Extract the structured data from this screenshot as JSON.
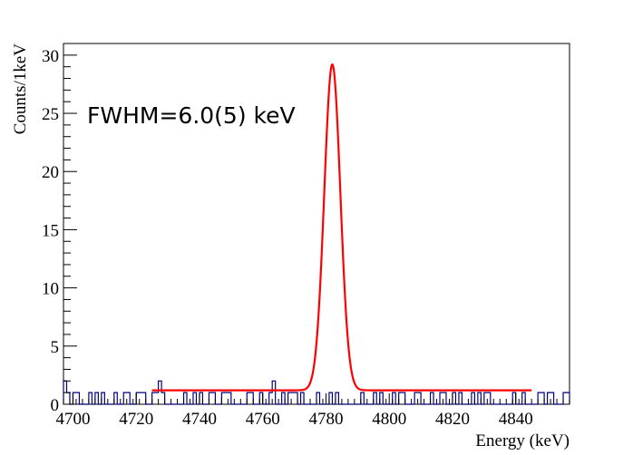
{
  "chart_data": {
    "type": "histogram",
    "xlabel": "Energy (keV)",
    "ylabel": "Counts/1keV",
    "xlim": [
      4697,
      4857
    ],
    "ylim": [
      0,
      31
    ],
    "x_ticks": [
      4700,
      4720,
      4740,
      4760,
      4780,
      4800,
      4820,
      4840
    ],
    "y_ticks": [
      0,
      5,
      10,
      15,
      20,
      25,
      30
    ],
    "x_tick_labels": [
      "4700",
      "4720",
      "4740",
      "4760",
      "4780",
      "4800",
      "4820",
      "4840"
    ],
    "y_tick_labels": [
      "0",
      "5",
      "10",
      "15",
      "20",
      "25",
      "30"
    ],
    "annotation": "FWHM=6.0(5) keV",
    "grid": false,
    "histogram": {
      "color": "#000080",
      "bin_width": 1,
      "bin_start": 4697,
      "counts": [
        2,
        1,
        0,
        1,
        1,
        0,
        0,
        0,
        1,
        0,
        1,
        0,
        1,
        0,
        0,
        0,
        1,
        0,
        0,
        1,
        1,
        0,
        0,
        1,
        1,
        1,
        0,
        0,
        1,
        1,
        2,
        1,
        0,
        0,
        0,
        0,
        0,
        0,
        1,
        0,
        0,
        1,
        0,
        1,
        0,
        0,
        1,
        1,
        0,
        0,
        1,
        1,
        1,
        0,
        0,
        0,
        0,
        0,
        1,
        1,
        0,
        0,
        1,
        0,
        0,
        1,
        2,
        0,
        0,
        1,
        0,
        1,
        1,
        1,
        0,
        1,
        0,
        0,
        0,
        0,
        1,
        0,
        0,
        0,
        1,
        0,
        1,
        0,
        0,
        0,
        0,
        0,
        0,
        0,
        1,
        0,
        0,
        0,
        1,
        0,
        1,
        0,
        0,
        0,
        1,
        0,
        1,
        1,
        0,
        0,
        0,
        1,
        1,
        0,
        0,
        0,
        1,
        0,
        0,
        1,
        1,
        0,
        0,
        1,
        0,
        1,
        0,
        0,
        0,
        1,
        0,
        1,
        0,
        1,
        1,
        0,
        0,
        0,
        0,
        0,
        0,
        0,
        1,
        0,
        0,
        1,
        0,
        0,
        0,
        0,
        1,
        1,
        0,
        1,
        1,
        0,
        0,
        0,
        1,
        1
      ]
    },
    "fit": {
      "color": "#ff0000",
      "range": [
        4725,
        4845
      ],
      "baseline": 1.2,
      "centroid": 4782,
      "amplitude": 28,
      "fwhm": 6.0
    }
  }
}
